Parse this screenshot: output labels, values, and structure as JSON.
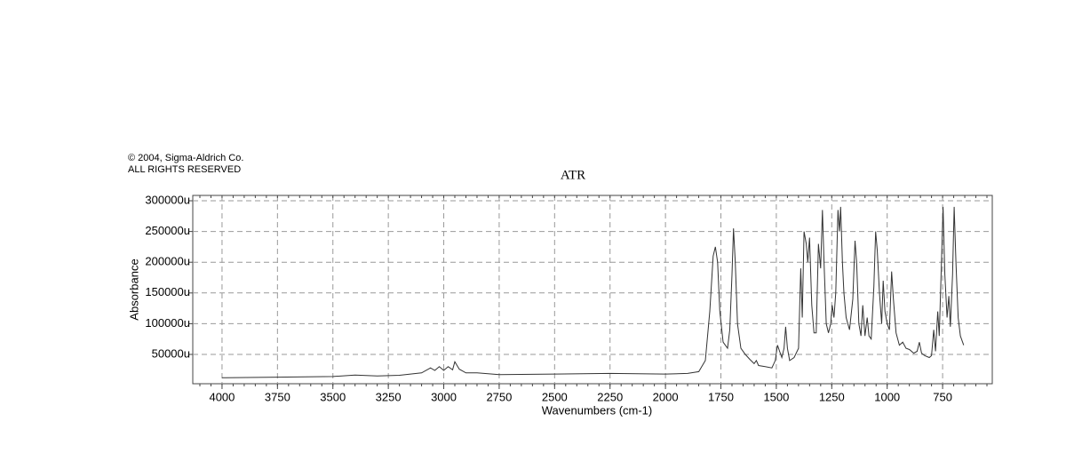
{
  "chart_data": {
    "type": "line",
    "copyright": "© 2004, Sigma-Aldrich Co.",
    "rights": "ALL RIGHTS RESERVED",
    "title": "ATR",
    "x_label": "Wavenumbers (cm-1)",
    "y_label": "Absorbance",
    "grid": true,
    "xlim": [
      4132,
      526
    ],
    "ylim": [
      2300,
      308700
    ],
    "xticks": [
      4000,
      3750,
      3500,
      3250,
      3000,
      2750,
      2500,
      2250,
      2000,
      1750,
      1500,
      1250,
      1000,
      750
    ],
    "yticks": [
      {
        "value": 50000,
        "label": "50000u"
      },
      {
        "value": 100000,
        "label": "100000u"
      },
      {
        "value": 150000,
        "label": "150000u"
      },
      {
        "value": 200000,
        "label": "200000u"
      },
      {
        "value": 250000,
        "label": "250000u"
      },
      {
        "value": 300000,
        "label": "300000u"
      }
    ],
    "series": [
      {
        "color": "#333333",
        "x": [
          4000,
          3750,
          3500,
          3400,
          3300,
          3200,
          3100,
          3060,
          3040,
          3020,
          3000,
          2980,
          2960,
          2950,
          2930,
          2900,
          2850,
          2750,
          2500,
          2250,
          2000,
          1900,
          1850,
          1820,
          1800,
          1785,
          1775,
          1765,
          1755,
          1740,
          1720,
          1710,
          1700,
          1693,
          1685,
          1675,
          1660,
          1640,
          1620,
          1600,
          1590,
          1580,
          1550,
          1520,
          1505,
          1495,
          1485,
          1475,
          1465,
          1458,
          1450,
          1440,
          1420,
          1400,
          1390,
          1383,
          1375,
          1365,
          1358,
          1350,
          1340,
          1330,
          1320,
          1310,
          1300,
          1292,
          1285,
          1275,
          1265,
          1255,
          1248,
          1240,
          1232,
          1222,
          1215,
          1210,
          1202,
          1195,
          1185,
          1170,
          1155,
          1145,
          1138,
          1128,
          1118,
          1110,
          1100,
          1090,
          1082,
          1072,
          1060,
          1052,
          1045,
          1035,
          1025,
          1018,
          1010,
          1000,
          990,
          980,
          972,
          960,
          945,
          930,
          915,
          900,
          880,
          865,
          855,
          845,
          830,
          810,
          800,
          790,
          782,
          772,
          765,
          755,
          748,
          740,
          730,
          722,
          715,
          705,
          698,
          690,
          680,
          670,
          655
        ],
        "values": [
          12000,
          13000,
          14000,
          16500,
          15000,
          16000,
          20000,
          28000,
          24000,
          30000,
          24000,
          30000,
          25000,
          38000,
          26000,
          20000,
          20000,
          17000,
          18000,
          19000,
          18000,
          19000,
          22000,
          40000,
          120000,
          210000,
          225000,
          200000,
          120000,
          70000,
          60000,
          90000,
          180000,
          255000,
          200000,
          100000,
          60000,
          50000,
          42000,
          35000,
          40000,
          32000,
          30000,
          28000,
          40000,
          65000,
          55000,
          45000,
          60000,
          95000,
          60000,
          40000,
          45000,
          60000,
          190000,
          110000,
          250000,
          230000,
          200000,
          240000,
          130000,
          85000,
          85000,
          230000,
          190000,
          285000,
          200000,
          100000,
          85000,
          100000,
          130000,
          110000,
          150000,
          285000,
          250000,
          290000,
          200000,
          150000,
          110000,
          90000,
          140000,
          235000,
          200000,
          100000,
          80000,
          130000,
          80000,
          110000,
          80000,
          75000,
          160000,
          250000,
          220000,
          150000,
          100000,
          170000,
          120000,
          100000,
          90000,
          185000,
          140000,
          85000,
          65000,
          70000,
          60000,
          58000,
          52000,
          55000,
          70000,
          52000,
          48000,
          45000,
          48000,
          90000,
          55000,
          120000,
          80000,
          200000,
          290000,
          180000,
          110000,
          145000,
          95000,
          180000,
          290000,
          200000,
          110000,
          80000,
          65000
        ]
      }
    ]
  }
}
